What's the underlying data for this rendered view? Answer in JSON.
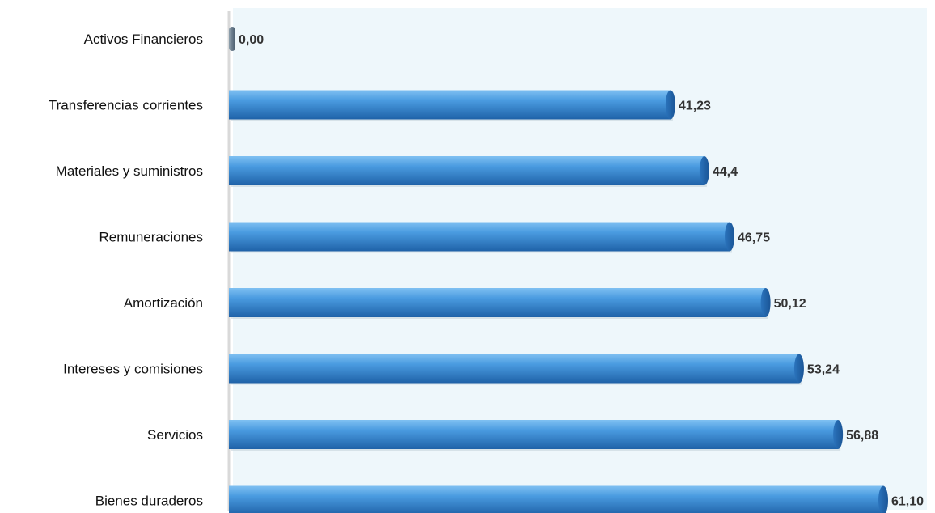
{
  "chart_data": {
    "type": "bar",
    "orientation": "horizontal",
    "categories": [
      "Activos Financieros",
      "Transferencias corrientes",
      "Materiales y suministros",
      "Remuneraciones",
      "Amortización",
      "Intereses y comisiones",
      "Servicios",
      "Bienes duraderos"
    ],
    "values": [
      0.0,
      41.23,
      44.4,
      46.75,
      50.12,
      53.24,
      56.88,
      61.1
    ],
    "value_labels": [
      "0,00",
      "41,23",
      "44,4",
      "46,75",
      "50,12",
      "53,24",
      "56,88",
      "61,10"
    ],
    "title": "",
    "xlabel": "",
    "ylabel": "",
    "xlim": [
      0,
      61.1
    ],
    "grid": false,
    "legend": "none",
    "colors": {
      "bar": "#3e8fd8",
      "bar_top": "#7fc0f2",
      "bar_bottom": "#1f62a8",
      "zero_bar": "#5b6f80",
      "background": "#ffffff",
      "back_wall": "#eef7fb"
    }
  }
}
